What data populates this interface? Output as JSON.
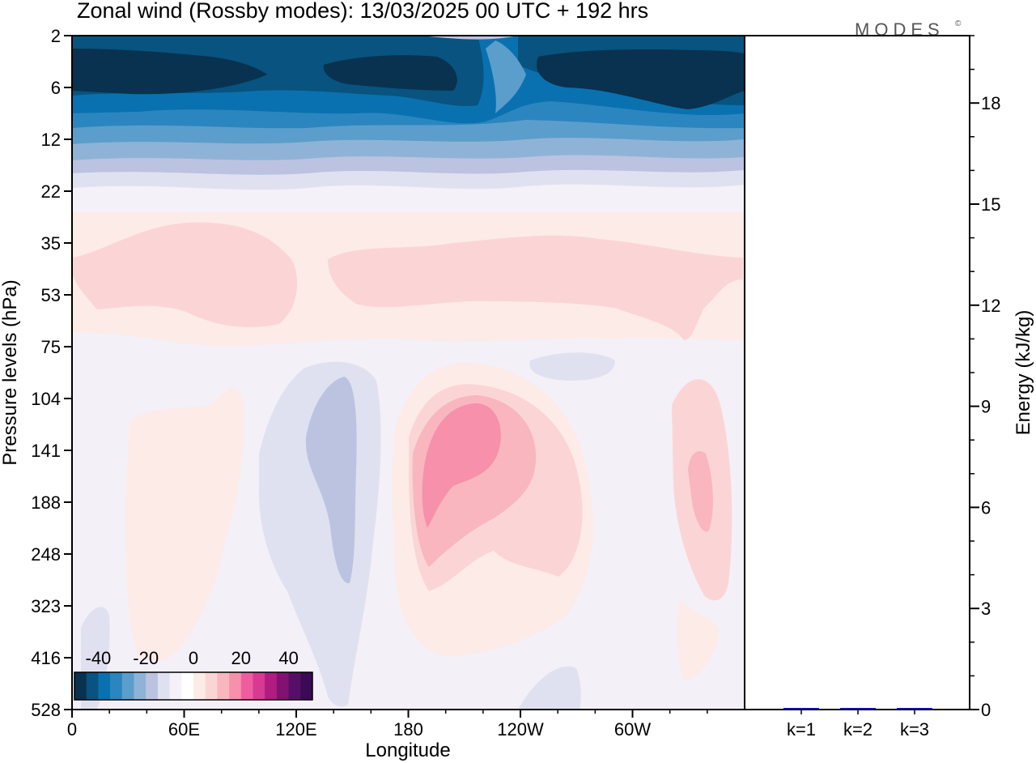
{
  "header": {
    "title": "Zonal wind (Rossby modes):  13/03/2025  00 UTC  + 192 hrs",
    "logo": "MODES",
    "logo_mark": "©"
  },
  "chart_data": [
    {
      "type": "heatmap",
      "title": "Zonal wind (Rossby modes):  13/03/2025  00 UTC  + 192 hrs",
      "xlabel": "Longitude",
      "ylabel": "Pressure levels (hPa)",
      "x_ticks": [
        "0",
        "60E",
        "120E",
        "180",
        "120W",
        "60W"
      ],
      "x_tick_positions_deg": [
        0,
        60,
        120,
        180,
        240,
        300
      ],
      "xlim_deg": [
        0,
        360
      ],
      "y_ticks": [
        2,
        6,
        12,
        22,
        35,
        53,
        75,
        104,
        141,
        188,
        248,
        323,
        416,
        528
      ],
      "y_scale": "pressure levels (top 2 hPa, bottom 528 hPa)",
      "colorbar": {
        "ticks": [
          -40,
          -20,
          0,
          20,
          40
        ],
        "levels": [
          -45,
          -40,
          -35,
          -30,
          -25,
          -20,
          -15,
          -10,
          -5,
          0,
          5,
          10,
          15,
          20,
          25,
          30,
          35,
          40,
          45
        ],
        "colors": [
          "#08324f",
          "#08537f",
          "#0a71b0",
          "#2b86bf",
          "#5b9ecc",
          "#8fb3d6",
          "#bcc3e0",
          "#e0e1f0",
          "#f4f1f8",
          "#ffffff",
          "#fdebe8",
          "#fbd5d5",
          "#f9b6bf",
          "#f790ab",
          "#ee5da0",
          "#d63a93",
          "#b01c80",
          "#821272",
          "#560f66",
          "#3a0a55"
        ]
      },
      "features": [
        {
          "name": "stratospheric easterly jet",
          "lon_range": [
            0,
            360
          ],
          "p_range": [
            2,
            14
          ],
          "max_value": -45
        },
        {
          "name": "weak westerly band",
          "lon_range": [
            10,
            360
          ],
          "p_range": [
            35,
            75
          ],
          "max_value": 8
        },
        {
          "name": "easterly anomaly",
          "lon_range": [
            100,
            165
          ],
          "p_range": [
            75,
            480
          ],
          "max_value": -12
        },
        {
          "name": "westerly maximum",
          "lon_range": [
            180,
            235
          ],
          "p_range": [
            95,
            330
          ],
          "max_value": 22
        },
        {
          "name": "westerly anomaly",
          "lon_range": [
            322,
            350
          ],
          "p_range": [
            104,
            323
          ],
          "max_value": 12
        }
      ]
    },
    {
      "type": "bar",
      "categories": [
        "k=1",
        "k=2",
        "k=3"
      ],
      "values": [
        0.03,
        0.01,
        0.01
      ],
      "ylabel": "Energy (kJ/kg)",
      "ylim": [
        0,
        20
      ],
      "y_ticks": [
        0,
        3,
        6,
        9,
        12,
        15,
        18
      ],
      "bar_color": "#1010a0"
    }
  ]
}
